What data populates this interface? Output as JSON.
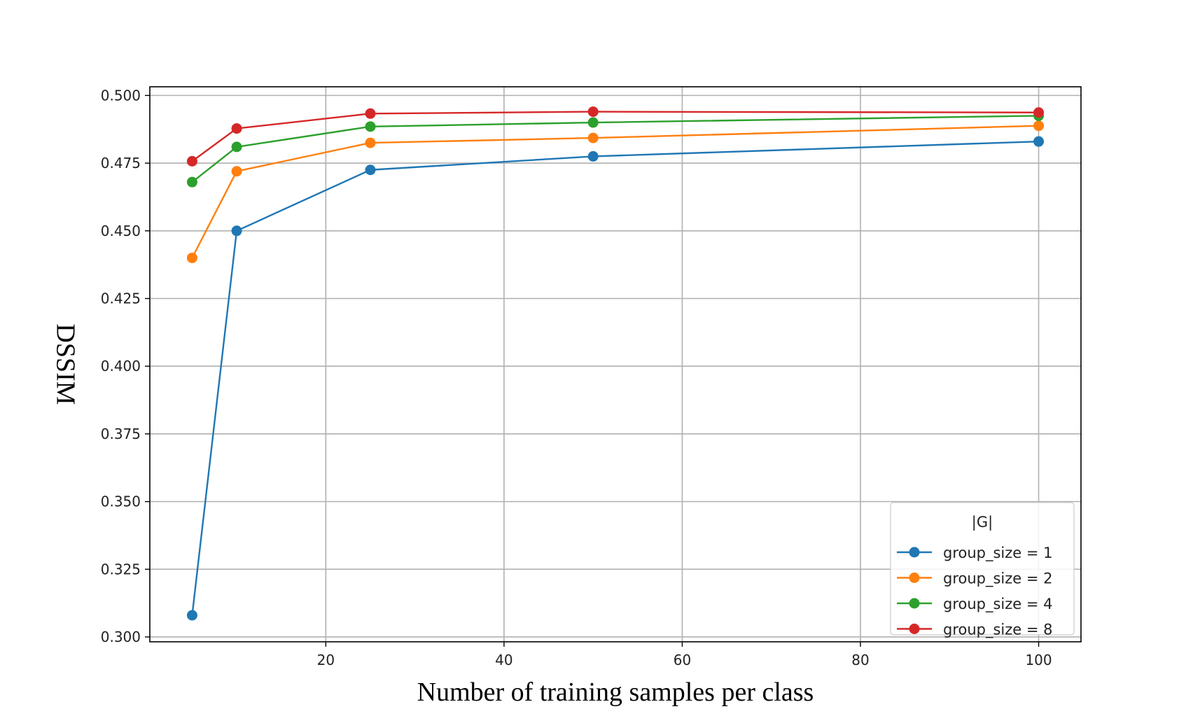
{
  "chart_data": {
    "type": "line",
    "title": "",
    "xlabel": "Number of training samples per class",
    "ylabel": "DSSIM",
    "xlim": [
      0.25,
      104.75
    ],
    "ylim": [
      0.2982,
      0.5032
    ],
    "x_ticks": [
      20,
      40,
      60,
      80,
      100
    ],
    "y_ticks": [
      0.3,
      0.325,
      0.35,
      0.375,
      0.4,
      0.425,
      0.45,
      0.475,
      0.5
    ],
    "x_tick_labels": [
      "20",
      "40",
      "60",
      "80",
      "100"
    ],
    "y_tick_labels": [
      "0.300",
      "0.325",
      "0.350",
      "0.375",
      "0.400",
      "0.425",
      "0.450",
      "0.475",
      "0.500"
    ],
    "grid": true,
    "legend": {
      "title": "|G|",
      "placement": "lower-right"
    },
    "x": [
      5,
      10,
      25,
      50,
      100
    ],
    "series": [
      {
        "name": "group_size = 1",
        "color": "#1f77b4",
        "values": [
          0.308,
          0.45,
          0.4725,
          0.4775,
          0.483
        ]
      },
      {
        "name": "group_size = 2",
        "color": "#ff7f0e",
        "values": [
          0.44,
          0.472,
          0.4825,
          0.4843,
          0.4888
        ]
      },
      {
        "name": "group_size = 4",
        "color": "#2ca02c",
        "values": [
          0.468,
          0.481,
          0.4885,
          0.49,
          0.4925
        ]
      },
      {
        "name": "group_size = 8",
        "color": "#d62728",
        "values": [
          0.4757,
          0.4878,
          0.4933,
          0.494,
          0.4937
        ]
      }
    ]
  }
}
